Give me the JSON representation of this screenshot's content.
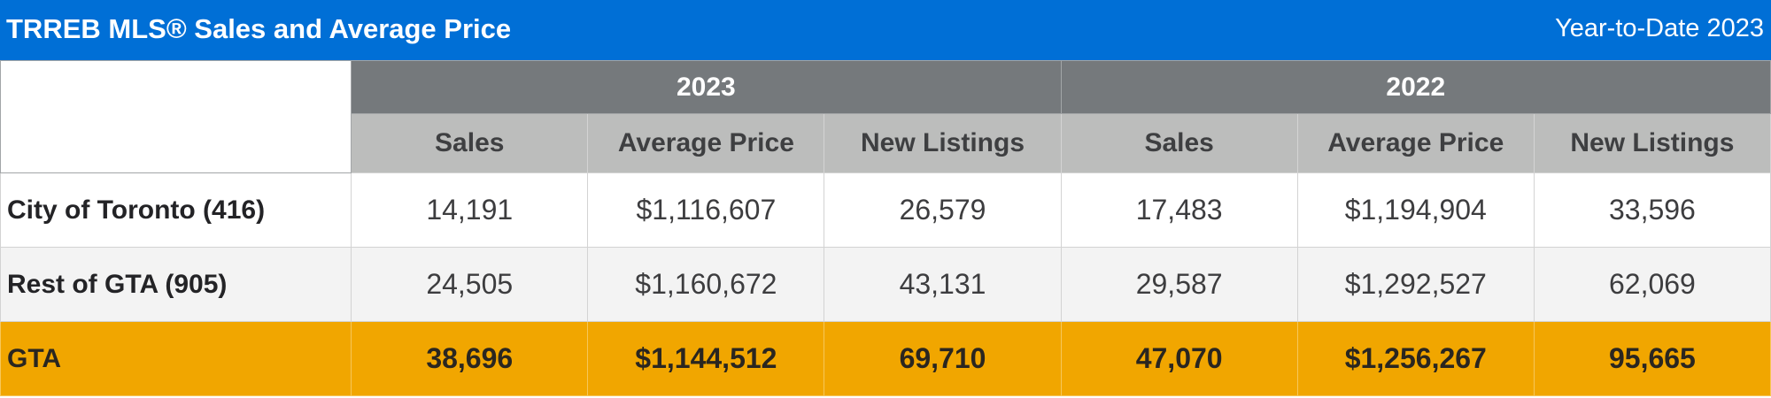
{
  "header": {
    "title": "TRREB MLS® Sales and Average Price",
    "period": "Year-to-Date 2023"
  },
  "columns": {
    "years": [
      "2023",
      "2022"
    ],
    "metrics": [
      "Sales",
      "Average Price",
      "New Listings"
    ]
  },
  "rows": [
    {
      "label": "City of Toronto (416)",
      "values": [
        "14,191",
        "$1,116,607",
        "26,579",
        "17,483",
        "$1,194,904",
        "33,596"
      ]
    },
    {
      "label": "Rest of GTA (905)",
      "values": [
        "24,505",
        "$1,160,672",
        "43,131",
        "29,587",
        "$1,292,527",
        "62,069"
      ]
    },
    {
      "label": "GTA",
      "values": [
        "38,696",
        "$1,144,512",
        "69,710",
        "47,070",
        "$1,256,267",
        "95,665"
      ]
    }
  ],
  "colors": {
    "title_bar": "#006fd6",
    "year_header": "#75797c",
    "metric_header": "#bcbdbc",
    "total_row": "#f1a600",
    "alt_row": "#f3f3f3"
  }
}
